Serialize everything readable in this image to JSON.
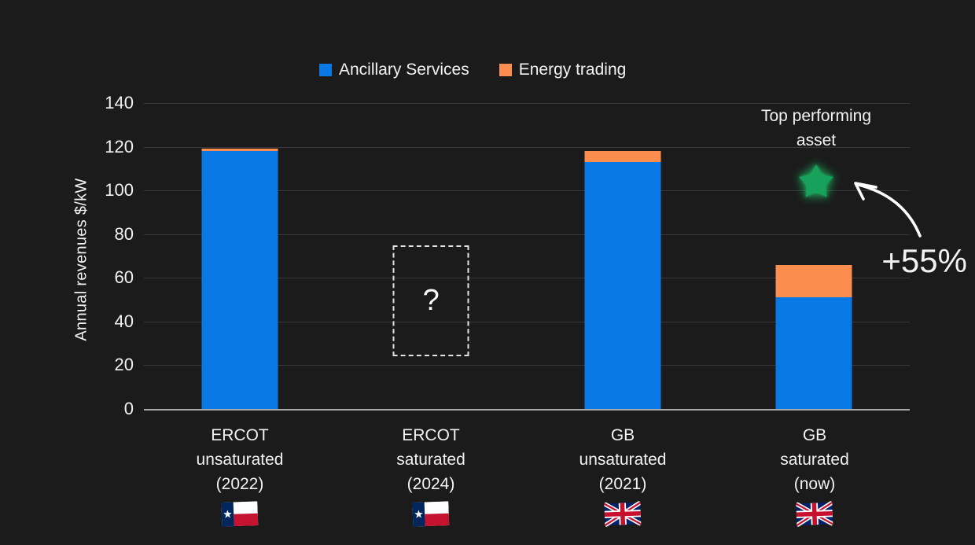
{
  "chart_data": {
    "type": "bar",
    "stacked": true,
    "title": "",
    "ylabel": "Annual revenues $/kW",
    "ylim": [
      0,
      140
    ],
    "y_ticks": [
      "140",
      "120",
      "100",
      "80",
      "60",
      "40",
      "20",
      "0"
    ],
    "grid": "horizontal",
    "legend_position": "top",
    "background": "#1b1b1b",
    "text_color": "#f2f2f2",
    "categories": [
      {
        "lines": [
          "ERCOT",
          "unsaturated",
          "(2022)"
        ],
        "flag": "texas"
      },
      {
        "lines": [
          "ERCOT",
          "saturated",
          "(2024)"
        ],
        "flag": "texas"
      },
      {
        "lines": [
          "GB",
          "unsaturated",
          "(2021)"
        ],
        "flag": "uk"
      },
      {
        "lines": [
          "GB",
          "saturated",
          "(now)"
        ],
        "flag": "uk"
      }
    ],
    "series": [
      {
        "name": "Ancillary Services",
        "color": "#0878e4",
        "values": [
          118,
          null,
          113,
          51
        ]
      },
      {
        "name": "Energy trading",
        "color": "#fb8d4e",
        "values": [
          1,
          null,
          5,
          15
        ]
      }
    ],
    "placeholder": {
      "category_index": 1,
      "label": "?",
      "range": [
        24,
        75
      ]
    },
    "annotations": {
      "top_performing": {
        "lines": [
          "Top performing",
          "asset"
        ],
        "icon": "star-icon",
        "star_color": "#16a25a",
        "target_category": "GB saturated (now)"
      },
      "delta_label": "+55%"
    }
  }
}
